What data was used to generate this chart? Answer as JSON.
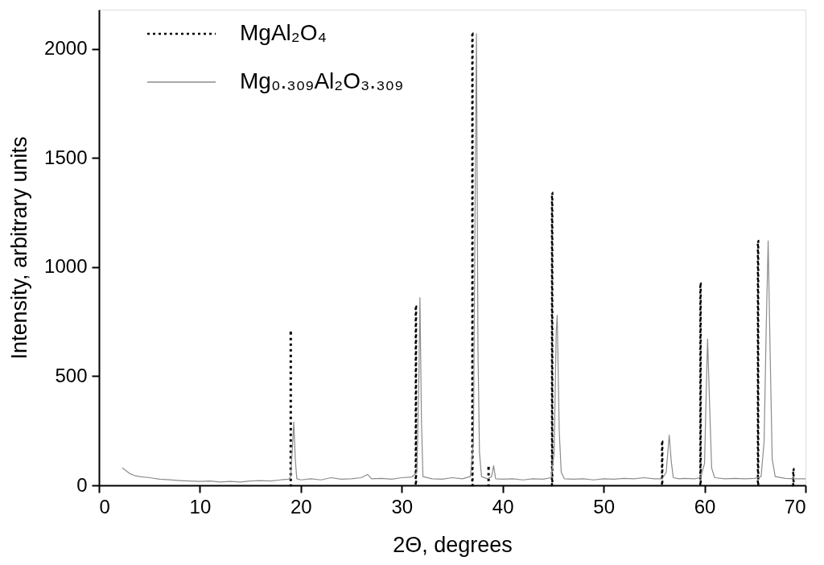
{
  "chart_data": {
    "type": "line",
    "xlabel": "2Θ, degrees",
    "ylabel": "Intensity, arbitrary units",
    "xlim": [
      0,
      70
    ],
    "ylim": [
      0,
      2180
    ],
    "xticks": [
      0,
      10,
      20,
      30,
      40,
      50,
      60,
      70
    ],
    "yticks": [
      0,
      500,
      1000,
      1500,
      2000
    ],
    "legend": "top left",
    "series": [
      {
        "name": "MgAl₂O₄",
        "type": "bar",
        "color": "#000000",
        "line_style": "dotted",
        "x": [
          19.0,
          31.4,
          37.0,
          38.6,
          44.9,
          55.8,
          59.6,
          65.3,
          68.8
        ],
        "values": [
          700,
          820,
          2070,
          80,
          1340,
          200,
          925,
          1120,
          75
        ]
      },
      {
        "name": "Mg₀.₃₀₉Al₂O₃.₃₀₉",
        "color": "#8c8c8c",
        "line_style": "solid",
        "x": [
          2.3,
          2.6,
          3,
          3.5,
          4,
          5,
          6,
          7,
          8,
          9,
          10,
          11,
          12,
          13,
          14,
          15,
          16,
          17,
          18,
          18.8,
          19.0,
          19.2,
          19.3,
          19.45,
          19.6,
          20,
          21,
          22,
          23,
          24,
          25,
          26,
          26.6,
          27,
          28,
          29,
          30,
          31,
          31.5,
          31.7,
          31.8,
          31.95,
          32.1,
          33,
          34,
          35,
          36,
          36.8,
          37.1,
          37.3,
          37.4,
          37.55,
          37.7,
          37.9,
          38.5,
          38.9,
          39.1,
          39.3,
          40,
          41,
          42,
          43,
          44,
          44.8,
          45.1,
          45.3,
          45.4,
          45.6,
          45.8,
          46.1,
          47,
          48,
          49,
          50,
          51,
          52,
          53,
          54,
          55,
          55.8,
          56.2,
          56.5,
          56.7,
          56.9,
          57.5,
          58,
          59,
          59.6,
          60.0,
          60.2,
          60.3,
          60.5,
          60.7,
          61,
          62,
          63,
          64,
          65,
          65.6,
          65.9,
          66.1,
          66.3,
          66.5,
          66.7,
          67,
          68,
          69,
          70
        ],
        "values": [
          80,
          70,
          55,
          45,
          40,
          35,
          28,
          25,
          22,
          20,
          18,
          20,
          15,
          18,
          15,
          20,
          22,
          20,
          25,
          28,
          40,
          200,
          290,
          120,
          30,
          25,
          30,
          25,
          35,
          28,
          30,
          35,
          50,
          30,
          32,
          28,
          35,
          38,
          60,
          500,
          860,
          300,
          40,
          30,
          28,
          35,
          30,
          40,
          200,
          1500,
          2070,
          620,
          150,
          40,
          30,
          40,
          90,
          30,
          28,
          30,
          25,
          30,
          28,
          35,
          150,
          700,
          780,
          250,
          60,
          30,
          28,
          30,
          25,
          30,
          28,
          32,
          30,
          35,
          30,
          30,
          60,
          230,
          110,
          35,
          30,
          32,
          30,
          35,
          100,
          500,
          670,
          370,
          80,
          35,
          30,
          32,
          30,
          32,
          40,
          200,
          700,
          1120,
          600,
          120,
          40,
          32,
          30,
          30
        ]
      }
    ]
  }
}
